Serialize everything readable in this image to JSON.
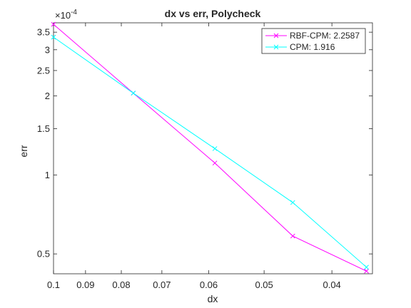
{
  "chart_data": {
    "type": "line",
    "title": "dx vs err, Polycheck",
    "xlabel": "dx",
    "ylabel": "err",
    "x_scale": "log",
    "y_scale": "log",
    "x_reversed": true,
    "xlim": [
      0.1,
      0.035
    ],
    "ylim": [
      4.2e-05,
      0.00038
    ],
    "y_exponent_label": "×10",
    "y_exponent_power": "-4",
    "x_ticks": [
      0.1,
      0.09,
      0.08,
      0.07,
      0.06,
      0.05,
      0.04
    ],
    "x_tick_labels": [
      "0.1",
      "0.09",
      "0.08",
      "0.07",
      "0.06",
      "0.05",
      "0.04"
    ],
    "y_ticks": [
      5e-05,
      0.0001,
      0.00015,
      0.0002,
      0.00025,
      0.0003,
      0.00035
    ],
    "y_tick_labels": [
      "0.5",
      "1",
      "1.5",
      "2",
      "2.5",
      "3",
      "3.5"
    ],
    "grid": false,
    "legend_position": "top-right",
    "series": [
      {
        "name": "RBF-CPM: 2.2587",
        "color": "#ff00ff",
        "marker": "x",
        "x": [
          0.1,
          0.0769,
          0.0588,
          0.0455,
          0.0357
        ],
        "y": [
          0.000375,
          0.000205,
          0.000111,
          5.85e-05,
          4.3e-05
        ]
      },
      {
        "name": "CPM: 1.916",
        "color": "#00ffff",
        "marker": "x",
        "x": [
          0.1,
          0.0769,
          0.0588,
          0.0455,
          0.0357
        ],
        "y": [
          0.000335,
          0.000205,
          0.000126,
          7.85e-05,
          4.45e-05
        ]
      }
    ]
  }
}
